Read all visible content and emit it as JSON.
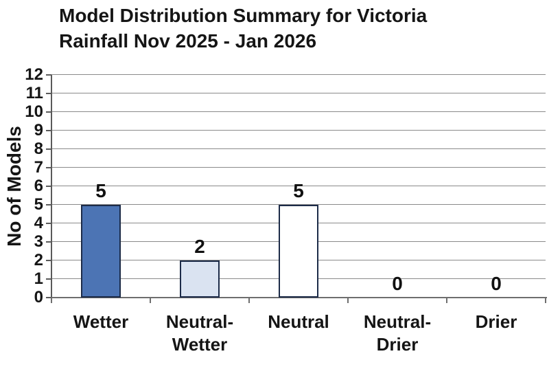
{
  "title": {
    "line1": "Model Distribution Summary for Victoria",
    "line2": "Rainfall Nov 2025 - Jan 2026"
  },
  "chart_data": {
    "type": "bar",
    "title": "Model Distribution Summary for Victoria Rainfall Nov 2025 - Jan 2026",
    "categories": [
      "Wetter",
      "Neutral-Wetter",
      "Neutral",
      "Neutral-Drier",
      "Drier"
    ],
    "values": [
      5,
      2,
      5,
      0,
      0
    ],
    "data_labels": [
      "5",
      "2",
      "5",
      "0",
      "0"
    ],
    "bar_fill_colors": [
      "#4C74B4",
      "#DAE3F1",
      "#FFFFFF",
      "#FFFFFF",
      "#FFFFFF"
    ],
    "bar_border_color": "#1c2b48",
    "xlabel": "",
    "ylabel": "No of Models",
    "ylim": [
      0,
      12
    ],
    "yticks": [
      0,
      1,
      2,
      3,
      4,
      5,
      6,
      7,
      8,
      9,
      10,
      11,
      12
    ],
    "grid": true,
    "gridline_color": "#8a8a8a",
    "axis_color": "#5a5a5a",
    "legend_position": "none"
  }
}
